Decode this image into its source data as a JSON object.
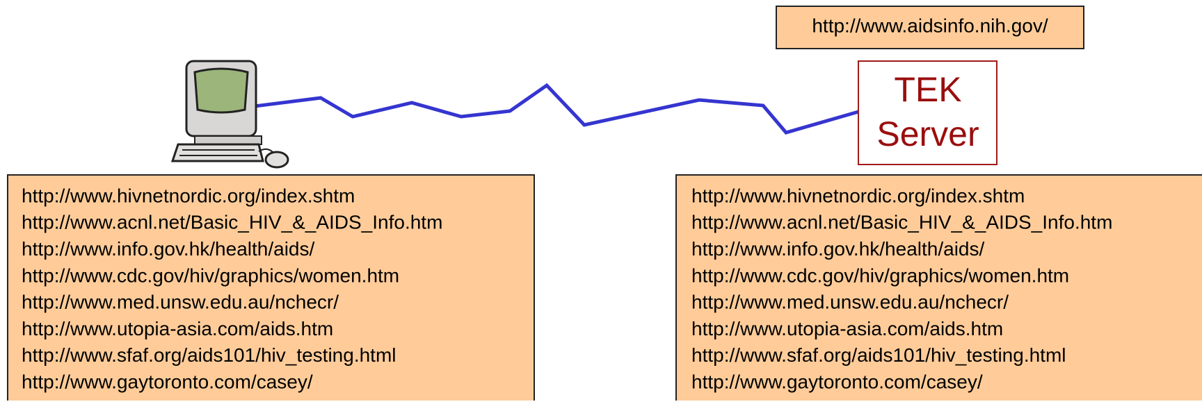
{
  "top_label": "http://www.aidsinfo.nih.gov/",
  "server": {
    "lines": [
      "TEK",
      "Server"
    ]
  },
  "client_list": [
    "http://www.hivnetnordic.org/index.shtm",
    "http://www.acnl.net/Basic_HIV_&_AIDS_Info.htm",
    "http://www.info.gov.hk/health/aids/",
    "http://www.cdc.gov/hiv/graphics/women.htm",
    "http://www.med.unsw.edu.au/nchecr/",
    "http://www.utopia-asia.com/aids.htm",
    "http://www.sfaf.org/aids101/hiv_testing.html",
    "http://www.gaytoronto.com/casey/"
  ],
  "server_list": [
    "http://www.hivnetnordic.org/index.shtm",
    "http://www.acnl.net/Basic_HIV_&_AIDS_Info.htm",
    "http://www.info.gov.hk/health/aids/",
    "http://www.cdc.gov/hiv/graphics/women.htm",
    "http://www.med.unsw.edu.au/nchecr/",
    "http://www.utopia-asia.com/aids.htm",
    "http://www.sfaf.org/aids101/hiv_testing.html",
    "http://www.gaytoronto.com/casey/"
  ]
}
